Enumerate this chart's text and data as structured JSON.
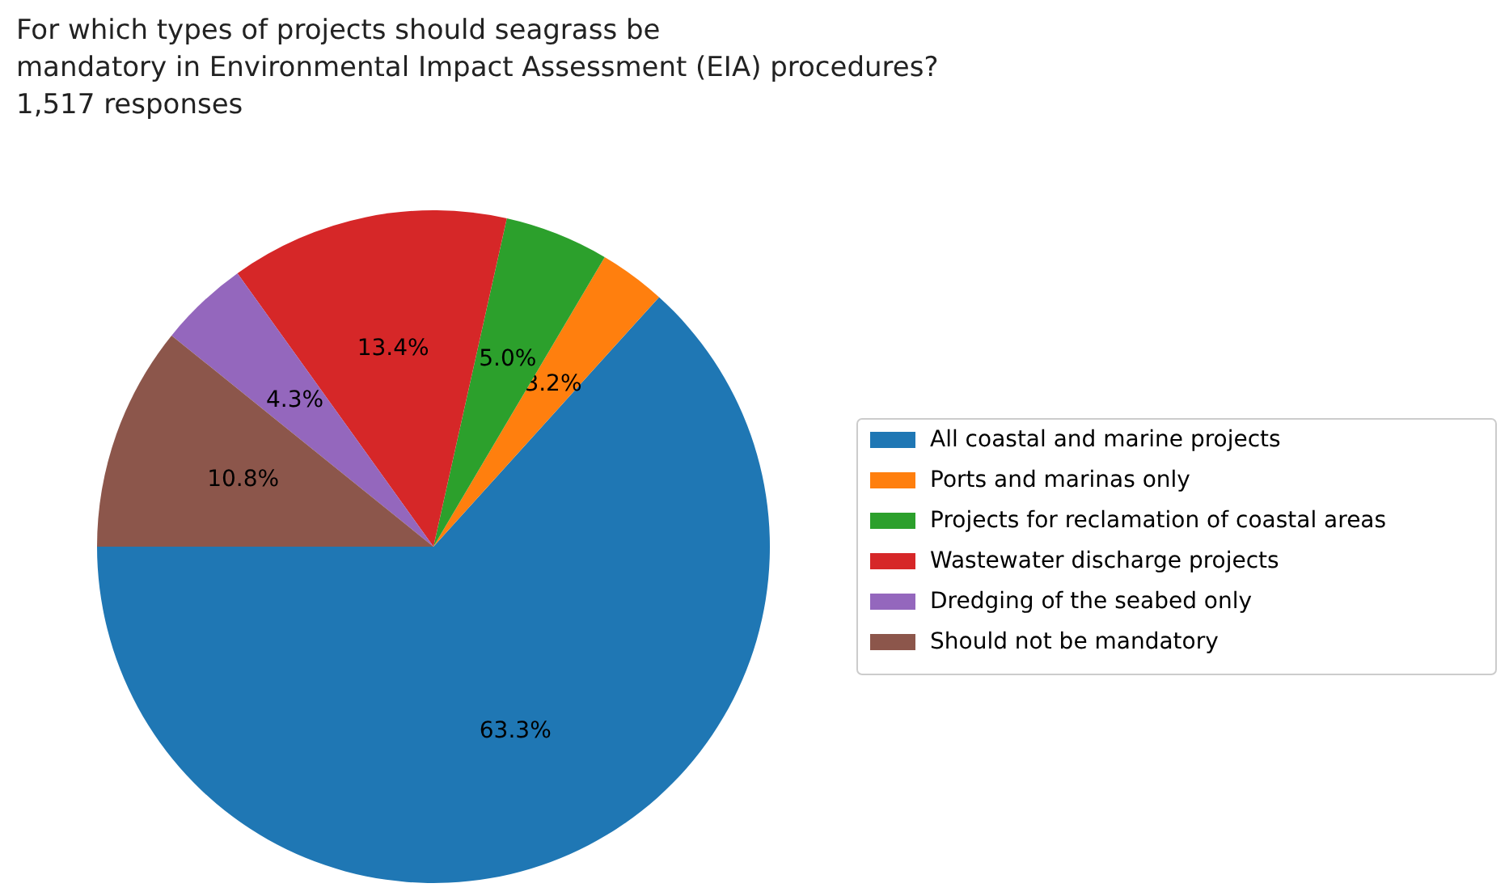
{
  "chart_data": {
    "type": "pie",
    "title": "For which types of projects should seagrass be\nmandatory in Environmental Impact Assessment (EIA) procedures?\n1,517 responses",
    "categories": [
      "All coastal and marine projects",
      "Ports and marinas only",
      "Projects for reclamation of coastal areas",
      "Wastewater discharge projects",
      "Dredging of the seabed only",
      "Should not be mandatory"
    ],
    "values": [
      63.3,
      3.2,
      5.0,
      13.4,
      4.3,
      10.8
    ],
    "colors": [
      "#1f77b4",
      "#ff7f0e",
      "#2ca02c",
      "#d62728",
      "#9467bd",
      "#8c564b"
    ],
    "value_labels": [
      "63.3%",
      "3.2%",
      "5.0%",
      "13.4%",
      "4.3%",
      "10.8%"
    ],
    "legend": "right"
  }
}
